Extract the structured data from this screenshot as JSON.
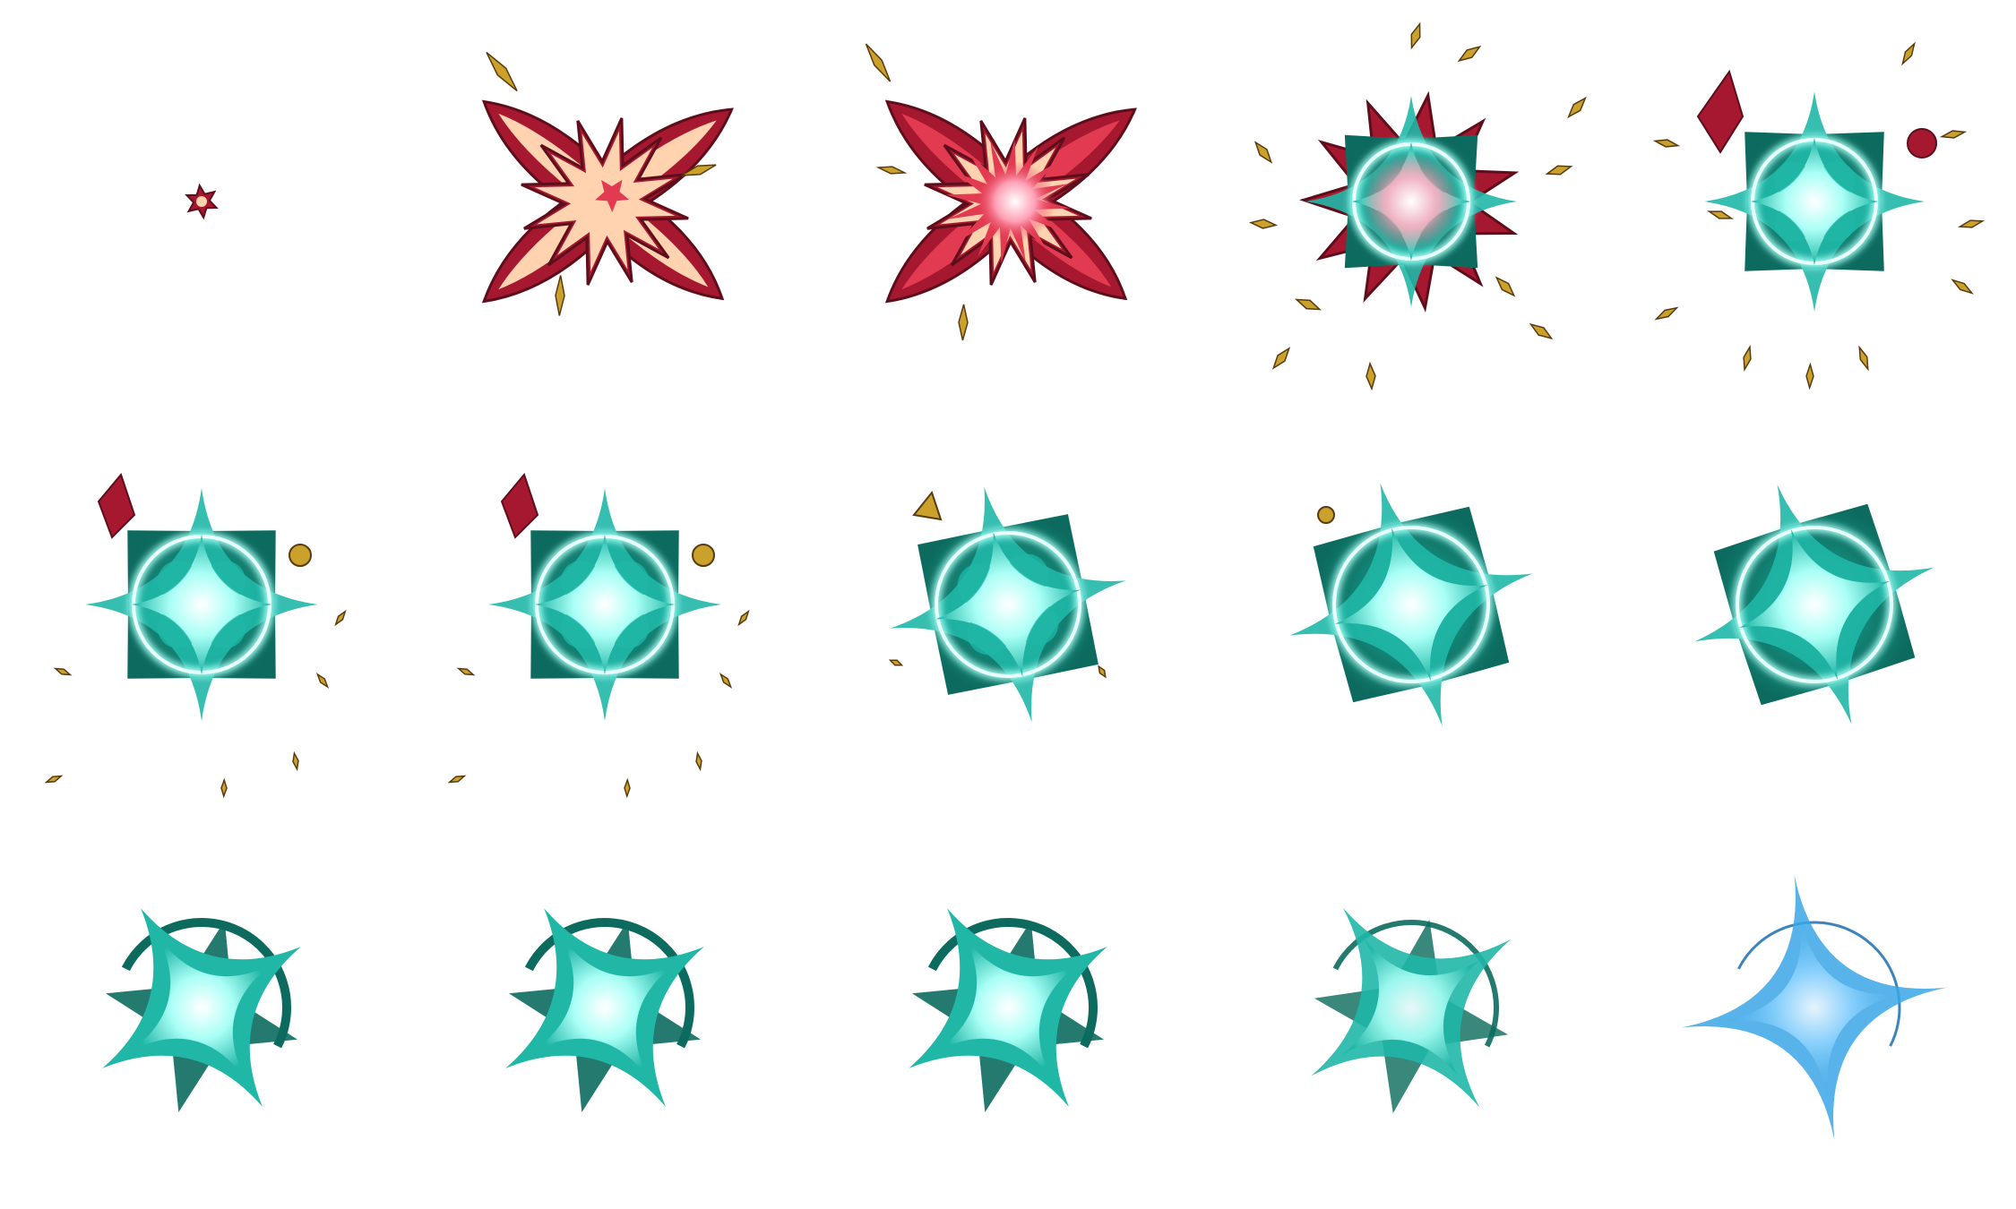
{
  "sprite_sheet": {
    "description_free": true,
    "rows": 3,
    "columns": 5,
    "frame_count": 15,
    "palette": {
      "background": "#ffffff",
      "burst_dark": "#a5182f",
      "burst_mid": "#e23a50",
      "burst_light": "#ffd3b0",
      "spark_gold": "#c9a12b",
      "spark_dark": "#5a3a10",
      "teal_dark": "#0c6b5e",
      "teal_mid": "#20b7a7",
      "teal_glow": "#a9fff6",
      "teal_core": "#e9fffd",
      "blue_final": "#3aa6e6",
      "white_core": "#ffffff"
    },
    "frames": [
      {
        "index": 1,
        "phase": "spark"
      },
      {
        "index": 2,
        "phase": "burst-x"
      },
      {
        "index": 3,
        "phase": "burst-flash"
      },
      {
        "index": 4,
        "phase": "burst-to-ring"
      },
      {
        "index": 5,
        "phase": "ring-debris"
      },
      {
        "index": 6,
        "phase": "ring-star"
      },
      {
        "index": 7,
        "phase": "ring-star"
      },
      {
        "index": 8,
        "phase": "ring-star-tilt"
      },
      {
        "index": 9,
        "phase": "ring-star-solid"
      },
      {
        "index": 10,
        "phase": "ring-star-dark"
      },
      {
        "index": 11,
        "phase": "star-fade"
      },
      {
        "index": 12,
        "phase": "star-fade"
      },
      {
        "index": 13,
        "phase": "star-fade"
      },
      {
        "index": 14,
        "phase": "star-dissolve"
      },
      {
        "index": 15,
        "phase": "star-blue-final"
      }
    ]
  }
}
